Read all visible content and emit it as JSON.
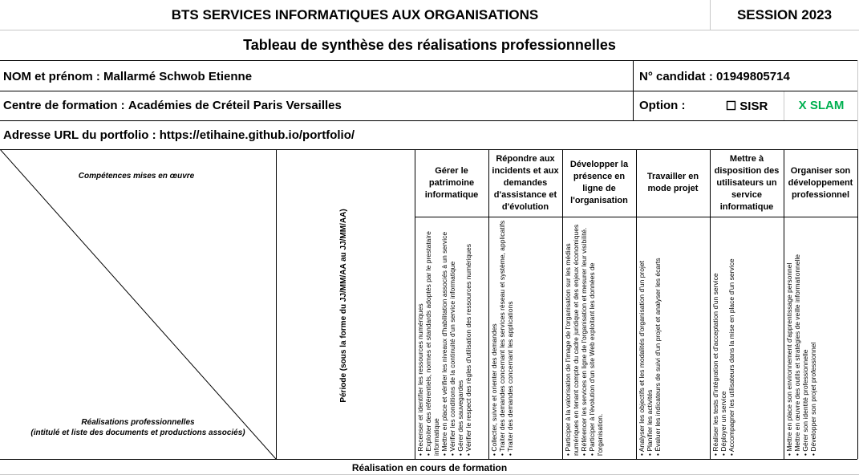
{
  "header": {
    "title": "BTS SERVICES INFORMATIQUES AUX ORGANISATIONS",
    "session": "SESSION 2023",
    "subtitle": "Tableau de synthèse des réalisations professionnelles"
  },
  "candidate": {
    "name_label": "NOM et prénom :",
    "name": "Mallarmé Schwob Etienne",
    "number_label": "N° candidat :",
    "number": "01949805714",
    "center_label": "Centre de formation :",
    "center": "Académies de Créteil Paris Versailles",
    "option_label": "Option :",
    "option_sisr": "☐ SISR",
    "option_slam": "X SLAM",
    "url_label": "Adresse URL du portfolio :",
    "url": "https://etihaine.github.io/portfolio/"
  },
  "colors": {
    "slam": "#00b050",
    "border": "#000000",
    "grid": "#c8c8c8"
  },
  "grid_labels": {
    "competences": "Compétences mises en œuvre",
    "realisations_title": "Réalisations professionnelles",
    "realisations_sub": "(intitulé et liste des documents et productions associés)",
    "periode": "Période (sous la forme du JJ/MM/AA au JJ/MM/AA)"
  },
  "competencies": [
    {
      "title": "Gérer le patrimoine informatique",
      "items": [
        "Recenser et identifier les ressources numériques",
        "Exploiter des référentiels, normes et standards adoptés par le prestataire informatique",
        "Mettre en place et vérifier les niveaux d'habilitation associés à un service",
        "Vérifier les conditions de la continuité d'un service informatique",
        "Gérer des sauvegardes",
        "Vérifier le respect des règles d'utilisation des ressources numériques"
      ]
    },
    {
      "title": "Répondre aux incidents et aux demandes d'assistance et d'évolution",
      "items": [
        "Collecter, suivre et orienter des demandes",
        "Traiter des demandes concernant les services réseau et système, applicatifs",
        "Traiter des demandes concernant les applications"
      ]
    },
    {
      "title": "Développer la présence en ligne de l'organisation",
      "items": [
        "Participer à la valorisation de l'image de l'organisation sur les médias numériques en tenant compte du cadre juridique et des enjeux économiques",
        "Référencer les services en ligne de l'organisation et mesurer leur visibilité.",
        "Participer à l'évolution d'un site Web exploitant les données de l'organisation."
      ]
    },
    {
      "title": "Travailler en mode projet",
      "items": [
        "Analyser les objectifs et les modalités d'organisation d'un projet",
        "Planifier les activités",
        "Évaluer les indicateurs de suivi d'un projet et analyser les écarts"
      ]
    },
    {
      "title": "Mettre à disposition des utilisateurs un service informatique",
      "items": [
        "Réaliser les tests d'intégration et d'acceptation d'un service",
        "Déployer un service",
        "Accompagner les utilisateurs dans la mise en place d'un service"
      ]
    },
    {
      "title": "Organiser son développement professionnel",
      "items": [
        "Mettre en place son environnement d'apprentissage personnel",
        "Mettre en œuvre des outils et stratégies de veille informationnelle",
        "Gérer son identité professionnelle",
        "Développer son projet professionnel"
      ]
    }
  ],
  "footer": {
    "section_title": "Réalisation en cours de formation"
  }
}
